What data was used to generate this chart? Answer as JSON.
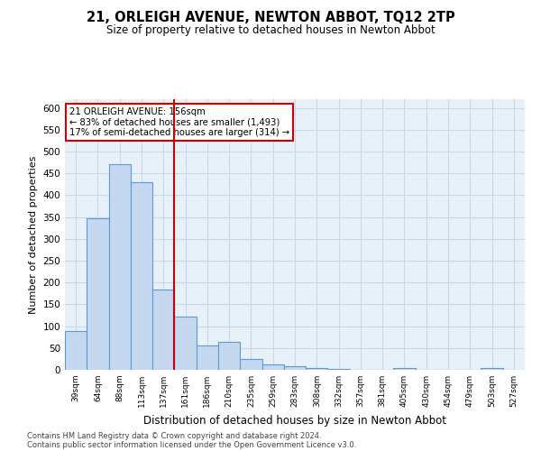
{
  "title": "21, ORLEIGH AVENUE, NEWTON ABBOT, TQ12 2TP",
  "subtitle": "Size of property relative to detached houses in Newton Abbot",
  "xlabel": "Distribution of detached houses by size in Newton Abbot",
  "ylabel": "Number of detached properties",
  "categories": [
    "39sqm",
    "64sqm",
    "88sqm",
    "113sqm",
    "137sqm",
    "161sqm",
    "186sqm",
    "210sqm",
    "235sqm",
    "259sqm",
    "283sqm",
    "308sqm",
    "332sqm",
    "357sqm",
    "381sqm",
    "405sqm",
    "430sqm",
    "454sqm",
    "479sqm",
    "503sqm",
    "527sqm"
  ],
  "values": [
    88,
    348,
    472,
    430,
    183,
    122,
    55,
    65,
    25,
    12,
    8,
    5,
    2,
    1,
    0,
    5,
    0,
    0,
    0,
    5,
    0
  ],
  "bar_color": "#c5d8f0",
  "bar_edge_color": "#5b9bd5",
  "bar_edge_width": 0.8,
  "grid_color": "#c8d8ea",
  "background_color": "#e8f0f8",
  "red_line_index": 5,
  "red_line_color": "#cc0000",
  "annotation_line1": "21 ORLEIGH AVENUE: 156sqm",
  "annotation_line2": "← 83% of detached houses are smaller (1,493)",
  "annotation_line3": "17% of semi-detached houses are larger (314) →",
  "annotation_box_color": "#ffffff",
  "annotation_box_edge": "#cc0000",
  "footer_line1": "Contains HM Land Registry data © Crown copyright and database right 2024.",
  "footer_line2": "Contains public sector information licensed under the Open Government Licence v3.0.",
  "ylim": [
    0,
    620
  ],
  "yticks": [
    0,
    50,
    100,
    150,
    200,
    250,
    300,
    350,
    400,
    450,
    500,
    550,
    600
  ]
}
